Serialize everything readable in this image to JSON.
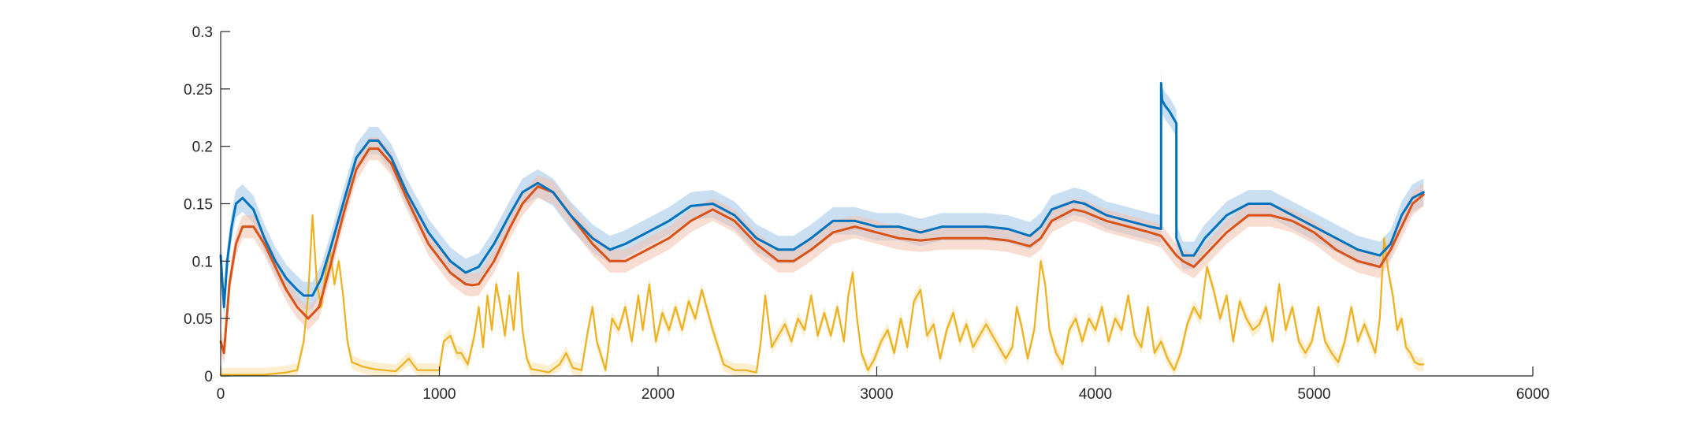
{
  "chart_data": {
    "type": "line",
    "title": "",
    "xlabel": "",
    "ylabel": "",
    "xlim": [
      0,
      6000
    ],
    "ylim": [
      0,
      0.3
    ],
    "grid": false,
    "legend": "none",
    "x_ticks": [
      0,
      1000,
      2000,
      3000,
      4000,
      5000,
      6000
    ],
    "x_tick_labels": [
      "0",
      "1000",
      "2000",
      "3000",
      "4000",
      "5000",
      "6000"
    ],
    "y_ticks": [
      0,
      0.05,
      0.1,
      0.15,
      0.2,
      0.25,
      0.3
    ],
    "y_tick_labels": [
      "0",
      "0.05",
      "0.1",
      "0.15",
      "0.2",
      "0.25",
      "0.3"
    ],
    "series": [
      {
        "color": "#0072BD",
        "band_color": "#9FC5E8",
        "band_halfwidth": 0.012,
        "x": [
          0,
          15,
          30,
          50,
          70,
          100,
          150,
          200,
          250,
          300,
          350,
          380,
          420,
          460,
          500,
          560,
          620,
          680,
          720,
          780,
          850,
          950,
          1050,
          1120,
          1180,
          1250,
          1320,
          1380,
          1450,
          1520,
          1600,
          1700,
          1780,
          1850,
          1950,
          2050,
          2150,
          2250,
          2350,
          2450,
          2550,
          2620,
          2700,
          2800,
          2900,
          3000,
          3100,
          3200,
          3300,
          3400,
          3500,
          3600,
          3700,
          3750,
          3800,
          3900,
          3950,
          4050,
          4150,
          4250,
          4300,
          4300,
          4305,
          4320,
          4340,
          4370,
          4370,
          4400,
          4450,
          4500,
          4600,
          4700,
          4800,
          4900,
          5000,
          5100,
          5200,
          5300,
          5350,
          5400,
          5450,
          5500
        ],
        "y": [
          0.105,
          0.06,
          0.1,
          0.13,
          0.15,
          0.155,
          0.145,
          0.12,
          0.1,
          0.085,
          0.075,
          0.07,
          0.07,
          0.085,
          0.11,
          0.15,
          0.19,
          0.205,
          0.205,
          0.19,
          0.16,
          0.125,
          0.1,
          0.09,
          0.095,
          0.115,
          0.14,
          0.16,
          0.168,
          0.16,
          0.14,
          0.12,
          0.11,
          0.115,
          0.125,
          0.135,
          0.148,
          0.15,
          0.14,
          0.12,
          0.11,
          0.11,
          0.12,
          0.135,
          0.135,
          0.13,
          0.13,
          0.125,
          0.13,
          0.13,
          0.13,
          0.128,
          0.122,
          0.13,
          0.145,
          0.152,
          0.15,
          0.14,
          0.135,
          0.13,
          0.128,
          0.255,
          0.24,
          0.235,
          0.23,
          0.22,
          0.12,
          0.105,
          0.105,
          0.12,
          0.14,
          0.15,
          0.15,
          0.14,
          0.13,
          0.12,
          0.11,
          0.105,
          0.115,
          0.14,
          0.155,
          0.16
        ]
      },
      {
        "color": "#D95319",
        "band_color": "#F3C1AE",
        "band_halfwidth": 0.01,
        "x": [
          0,
          15,
          40,
          70,
          100,
          150,
          200,
          250,
          300,
          350,
          400,
          450,
          500,
          560,
          620,
          680,
          720,
          780,
          850,
          950,
          1050,
          1120,
          1150,
          1180,
          1250,
          1320,
          1380,
          1450,
          1520,
          1600,
          1700,
          1780,
          1850,
          1950,
          2050,
          2150,
          2250,
          2350,
          2450,
          2550,
          2620,
          2700,
          2800,
          2900,
          3000,
          3100,
          3200,
          3300,
          3400,
          3500,
          3600,
          3700,
          3750,
          3800,
          3900,
          3950,
          4050,
          4150,
          4250,
          4300,
          4370,
          4400,
          4450,
          4500,
          4600,
          4700,
          4800,
          4900,
          5000,
          5100,
          5200,
          5300,
          5350,
          5400,
          5450,
          5500
        ],
        "y": [
          0.03,
          0.02,
          0.08,
          0.115,
          0.13,
          0.13,
          0.115,
          0.095,
          0.075,
          0.06,
          0.05,
          0.06,
          0.095,
          0.14,
          0.18,
          0.198,
          0.198,
          0.185,
          0.155,
          0.115,
          0.09,
          0.08,
          0.079,
          0.08,
          0.1,
          0.128,
          0.15,
          0.165,
          0.16,
          0.14,
          0.115,
          0.1,
          0.1,
          0.11,
          0.12,
          0.135,
          0.145,
          0.135,
          0.115,
          0.1,
          0.1,
          0.11,
          0.125,
          0.13,
          0.125,
          0.12,
          0.118,
          0.12,
          0.12,
          0.12,
          0.118,
          0.113,
          0.12,
          0.135,
          0.145,
          0.143,
          0.135,
          0.13,
          0.125,
          0.122,
          0.105,
          0.1,
          0.095,
          0.105,
          0.125,
          0.14,
          0.14,
          0.135,
          0.125,
          0.11,
          0.1,
          0.095,
          0.11,
          0.13,
          0.15,
          0.158
        ]
      },
      {
        "color": "#EDB120",
        "band_color": "#F8E2A8",
        "band_halfwidth": 0.006,
        "x": [
          0,
          50,
          100,
          200,
          300,
          350,
          380,
          400,
          420,
          440,
          460,
          480,
          500,
          520,
          540,
          560,
          580,
          600,
          650,
          700,
          800,
          860,
          900,
          1000,
          1020,
          1050,
          1080,
          1100,
          1130,
          1160,
          1180,
          1200,
          1220,
          1240,
          1260,
          1280,
          1300,
          1320,
          1340,
          1360,
          1380,
          1400,
          1420,
          1450,
          1500,
          1550,
          1580,
          1610,
          1650,
          1680,
          1700,
          1720,
          1760,
          1790,
          1820,
          1850,
          1880,
          1910,
          1930,
          1960,
          1990,
          2020,
          2050,
          2080,
          2110,
          2140,
          2170,
          2200,
          2250,
          2300,
          2350,
          2400,
          2450,
          2470,
          2490,
          2520,
          2550,
          2580,
          2610,
          2640,
          2670,
          2700,
          2730,
          2760,
          2790,
          2820,
          2850,
          2870,
          2890,
          2910,
          2930,
          2960,
          2990,
          3020,
          3050,
          3080,
          3110,
          3140,
          3170,
          3200,
          3230,
          3260,
          3290,
          3320,
          3350,
          3380,
          3410,
          3440,
          3470,
          3500,
          3530,
          3560,
          3590,
          3620,
          3640,
          3660,
          3690,
          3720,
          3750,
          3770,
          3790,
          3820,
          3850,
          3880,
          3910,
          3940,
          3970,
          4000,
          4030,
          4060,
          4090,
          4120,
          4150,
          4180,
          4210,
          4240,
          4270,
          4300,
          4330,
          4360,
          4390,
          4420,
          4450,
          4480,
          4510,
          4540,
          4570,
          4600,
          4630,
          4660,
          4690,
          4720,
          4750,
          4780,
          4810,
          4840,
          4870,
          4900,
          4930,
          4960,
          4990,
          5020,
          5050,
          5080,
          5110,
          5140,
          5170,
          5200,
          5230,
          5260,
          5280,
          5300,
          5320,
          5340,
          5360,
          5380,
          5400,
          5420,
          5440,
          5460,
          5480,
          5500
        ],
        "y": [
          0.001,
          0.001,
          0.001,
          0.001,
          0.003,
          0.005,
          0.03,
          0.07,
          0.14,
          0.08,
          0.06,
          0.09,
          0.11,
          0.08,
          0.1,
          0.07,
          0.03,
          0.012,
          0.008,
          0.006,
          0.004,
          0.015,
          0.005,
          0.005,
          0.03,
          0.035,
          0.02,
          0.02,
          0.01,
          0.035,
          0.06,
          0.025,
          0.07,
          0.04,
          0.08,
          0.06,
          0.035,
          0.07,
          0.04,
          0.09,
          0.04,
          0.015,
          0.006,
          0.005,
          0.003,
          0.01,
          0.02,
          0.007,
          0.005,
          0.04,
          0.06,
          0.03,
          0.005,
          0.05,
          0.04,
          0.06,
          0.03,
          0.07,
          0.04,
          0.08,
          0.03,
          0.055,
          0.04,
          0.06,
          0.04,
          0.065,
          0.05,
          0.075,
          0.04,
          0.01,
          0.005,
          0.005,
          0.003,
          0.03,
          0.07,
          0.025,
          0.035,
          0.045,
          0.03,
          0.05,
          0.04,
          0.07,
          0.035,
          0.055,
          0.035,
          0.06,
          0.03,
          0.07,
          0.09,
          0.05,
          0.02,
          0.005,
          0.015,
          0.03,
          0.04,
          0.02,
          0.05,
          0.025,
          0.065,
          0.075,
          0.035,
          0.045,
          0.015,
          0.04,
          0.055,
          0.03,
          0.045,
          0.025,
          0.035,
          0.045,
          0.035,
          0.025,
          0.015,
          0.025,
          0.06,
          0.045,
          0.015,
          0.04,
          0.1,
          0.08,
          0.04,
          0.02,
          0.01,
          0.04,
          0.05,
          0.03,
          0.05,
          0.04,
          0.06,
          0.03,
          0.05,
          0.04,
          0.07,
          0.035,
          0.025,
          0.06,
          0.02,
          0.03,
          0.015,
          0.005,
          0.02,
          0.045,
          0.06,
          0.05,
          0.095,
          0.075,
          0.05,
          0.07,
          0.03,
          0.065,
          0.05,
          0.04,
          0.045,
          0.06,
          0.03,
          0.08,
          0.04,
          0.06,
          0.03,
          0.02,
          0.03,
          0.06,
          0.03,
          0.02,
          0.012,
          0.03,
          0.06,
          0.03,
          0.045,
          0.03,
          0.02,
          0.05,
          0.12,
          0.09,
          0.07,
          0.04,
          0.05,
          0.025,
          0.02,
          0.012,
          0.01,
          0.01
        ]
      }
    ]
  }
}
